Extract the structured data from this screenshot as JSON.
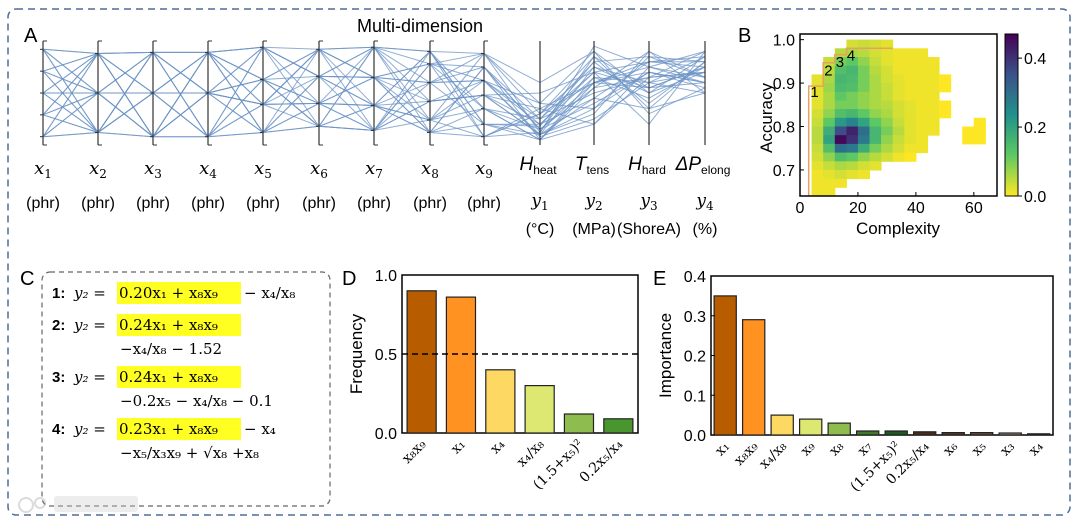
{
  "panels": {
    "a": "A",
    "b": "B",
    "c": "C",
    "d": "D",
    "e": "E"
  },
  "watermark": "大数跨境",
  "chart_data": [
    {
      "id": "A",
      "type": "parallel_coordinates",
      "title": "Multi-dimension",
      "line_color": "#6b93c6",
      "axes": [
        {
          "sym": "x",
          "sub": "1",
          "unit": "(phr)"
        },
        {
          "sym": "x",
          "sub": "2",
          "unit": "(phr)"
        },
        {
          "sym": "x",
          "sub": "3",
          "unit": "(phr)"
        },
        {
          "sym": "x",
          "sub": "4",
          "unit": "(phr)"
        },
        {
          "sym": "x",
          "sub": "5",
          "unit": "(phr)"
        },
        {
          "sym": "x",
          "sub": "6",
          "unit": "(phr)"
        },
        {
          "sym": "x",
          "sub": "7",
          "unit": "(phr)"
        },
        {
          "sym": "x",
          "sub": "8",
          "unit": "(phr)"
        },
        {
          "sym": "x",
          "sub": "9",
          "unit": "(phr)"
        },
        {
          "name": "H",
          "name_sub": "heat",
          "sym": "y",
          "sub": "1",
          "unit": "(°C)"
        },
        {
          "name": "T",
          "name_sub": "tens",
          "sym": "y",
          "sub": "2",
          "unit": "(MPa)"
        },
        {
          "name": "H",
          "name_sub": "hard",
          "sym": "y",
          "sub": "3",
          "unit": "(ShoreA)"
        },
        {
          "name": "ΔP",
          "name_sub": "elong",
          "sym": "y",
          "sub": "4",
          "unit": "(%)"
        }
      ],
      "lines_normalized": [
        [
          0.92,
          0.88,
          0.89,
          0.89,
          0.94,
          0.92,
          0.94,
          0.9,
          0.88,
          0.3,
          0.6,
          0.8,
          0.85
        ],
        [
          0.92,
          0.5,
          0.08,
          0.5,
          0.63,
          0.66,
          0.65,
          0.78,
          0.75,
          0.15,
          0.4,
          0.7,
          0.6
        ],
        [
          0.92,
          0.12,
          0.5,
          0.08,
          0.39,
          0.4,
          0.38,
          0.6,
          0.62,
          0.2,
          0.7,
          0.55,
          0.75
        ],
        [
          0.71,
          0.88,
          0.5,
          0.08,
          0.12,
          0.18,
          0.14,
          0.42,
          0.48,
          0.1,
          0.3,
          0.9,
          0.5
        ],
        [
          0.71,
          0.5,
          0.89,
          0.5,
          0.94,
          0.66,
          0.38,
          0.24,
          0.35,
          0.25,
          0.8,
          0.4,
          0.8
        ],
        [
          0.71,
          0.12,
          0.08,
          0.89,
          0.63,
          0.92,
          0.65,
          0.12,
          0.2,
          0.05,
          0.55,
          0.65,
          0.7
        ],
        [
          0.5,
          0.88,
          0.08,
          0.89,
          0.39,
          0.18,
          0.94,
          0.9,
          0.08,
          0.35,
          0.2,
          0.75,
          0.9
        ],
        [
          0.5,
          0.5,
          0.5,
          0.5,
          0.12,
          0.4,
          0.14,
          0.78,
          0.88,
          0.6,
          0.9,
          0.3,
          0.55
        ],
        [
          0.5,
          0.12,
          0.89,
          0.08,
          0.94,
          0.66,
          0.65,
          0.6,
          0.75,
          0.05,
          0.65,
          0.6,
          0.7
        ],
        [
          0.29,
          0.88,
          0.5,
          0.89,
          0.63,
          0.4,
          0.38,
          0.42,
          0.62,
          0.4,
          0.35,
          0.85,
          0.65
        ],
        [
          0.29,
          0.5,
          0.08,
          0.5,
          0.39,
          0.92,
          0.14,
          0.24,
          0.48,
          0.1,
          0.75,
          0.5,
          0.85
        ],
        [
          0.29,
          0.12,
          0.89,
          0.89,
          0.12,
          0.18,
          0.94,
          0.12,
          0.35,
          0.15,
          0.6,
          0.7,
          0.6
        ],
        [
          0.08,
          0.88,
          0.89,
          0.08,
          0.39,
          0.66,
          0.38,
          0.9,
          0.2,
          0.2,
          0.45,
          0.8,
          0.75
        ],
        [
          0.08,
          0.5,
          0.5,
          0.89,
          0.94,
          0.4,
          0.65,
          0.78,
          0.08,
          0.3,
          0.85,
          0.35,
          0.8
        ],
        [
          0.08,
          0.12,
          0.08,
          0.5,
          0.63,
          0.18,
          0.14,
          0.6,
          0.62,
          0.08,
          0.25,
          0.6,
          0.5
        ],
        [
          0.92,
          0.5,
          0.5,
          0.89,
          0.12,
          0.66,
          0.94,
          0.42,
          0.48,
          0.5,
          0.7,
          0.2,
          0.9
        ],
        [
          0.71,
          0.12,
          0.5,
          0.08,
          0.63,
          0.4,
          0.65,
          0.24,
          0.88,
          0.12,
          0.95,
          0.75,
          0.65
        ],
        [
          0.5,
          0.88,
          0.89,
          0.5,
          0.39,
          0.92,
          0.38,
          0.12,
          0.75,
          0.25,
          0.5,
          0.65,
          0.7
        ],
        [
          0.29,
          0.5,
          0.89,
          0.08,
          0.94,
          0.18,
          0.14,
          0.9,
          0.35,
          0.05,
          0.6,
          0.55,
          0.6
        ],
        [
          0.08,
          0.88,
          0.08,
          0.5,
          0.12,
          0.92,
          0.65,
          0.6,
          0.2,
          0.18,
          0.8,
          0.85,
          0.8
        ],
        [
          0.92,
          0.12,
          0.89,
          0.5,
          0.39,
          0.4,
          0.94,
          0.78,
          0.62,
          0.1,
          0.35,
          0.7,
          0.55
        ],
        [
          0.71,
          0.5,
          0.08,
          0.89,
          0.94,
          0.66,
          0.14,
          0.42,
          0.48,
          0.2,
          0.65,
          0.45,
          0.75
        ],
        [
          0.5,
          0.12,
          0.5,
          0.89,
          0.63,
          0.18,
          0.38,
          0.24,
          0.08,
          0.3,
          0.75,
          0.6,
          0.85
        ],
        [
          0.29,
          0.88,
          0.08,
          0.08,
          0.12,
          0.66,
          0.65,
          0.12,
          0.75,
          0.15,
          0.55,
          0.9,
          0.65
        ],
        [
          0.08,
          0.5,
          0.89,
          0.89,
          0.39,
          0.92,
          0.94,
          0.6,
          0.88,
          0.4,
          0.9,
          0.5,
          0.7
        ],
        [
          0.92,
          0.88,
          0.5,
          0.5,
          0.63,
          0.18,
          0.38,
          0.9,
          0.2,
          0.1,
          0.45,
          0.35,
          0.5
        ],
        [
          0.71,
          0.88,
          0.08,
          0.89,
          0.12,
          0.4,
          0.14,
          0.78,
          0.35,
          0.05,
          0.2,
          0.65,
          0.9
        ],
        [
          0.29,
          0.12,
          0.5,
          0.5,
          0.94,
          0.66,
          0.94,
          0.24,
          0.62,
          0.25,
          0.7,
          0.8,
          0.8
        ],
        [
          0.5,
          0.5,
          0.08,
          0.08,
          0.63,
          0.92,
          0.65,
          0.42,
          0.48,
          0.35,
          0.6,
          0.75,
          0.6
        ],
        [
          0.08,
          0.12,
          0.89,
          0.5,
          0.39,
          0.4,
          0.38,
          0.12,
          0.08,
          0.12,
          0.85,
          0.55,
          0.75
        ]
      ]
    },
    {
      "id": "B",
      "type": "heatmap",
      "xlabel": "Complexity",
      "ylabel": "Accuracy",
      "xlim": [
        0,
        68
      ],
      "ylim": [
        0.64,
        1.013
      ],
      "xticks": [
        "0",
        "20",
        "40",
        "60"
      ],
      "yticks": [
        "0.7",
        "0.8",
        "0.9",
        "1.0"
      ],
      "x_bin": 4,
      "y_bin": 0.02,
      "y_top": 1.0,
      "colormap": "viridis_r",
      "colorbar": {
        "range": [
          0,
          0.47
        ],
        "ticks": [
          "0.0",
          "0.2",
          "0.4"
        ]
      },
      "pareto_front": [
        [
          3,
          0.64
        ],
        [
          3,
          0.893
        ],
        [
          8,
          0.893
        ],
        [
          8,
          0.947
        ],
        [
          12,
          0.947
        ],
        [
          12,
          0.965
        ],
        [
          16,
          0.965
        ],
        [
          16,
          0.98
        ],
        [
          32,
          0.98
        ]
      ],
      "pareto_color": "#e8a060",
      "annotations": [
        {
          "text": "1",
          "x": 5,
          "y": 0.868
        },
        {
          "text": "2",
          "x": 9.8,
          "y": 0.918
        },
        {
          "text": "3",
          "x": 13.8,
          "y": 0.937
        },
        {
          "text": "4",
          "x": 17.6,
          "y": 0.952
        }
      ],
      "values": [
        [
          null,
          null,
          null,
          null,
          0.03,
          0.04,
          0.03,
          0.02,
          null,
          null,
          null,
          null,
          null,
          null,
          null,
          null,
          null
        ],
        [
          null,
          null,
          null,
          0.05,
          0.06,
          0.05,
          0.03,
          0.02,
          0.01,
          0.01,
          0.01,
          null,
          null,
          null,
          null,
          null,
          null
        ],
        [
          null,
          null,
          0.04,
          0.1,
          0.12,
          0.08,
          0.04,
          0.02,
          0.01,
          0.01,
          0.01,
          0.01,
          null,
          null,
          null,
          null,
          null
        ],
        [
          null,
          null,
          0.05,
          0.14,
          0.16,
          0.1,
          0.05,
          0.03,
          0.01,
          0.01,
          0.01,
          0.01,
          null,
          null,
          null,
          null,
          null
        ],
        [
          null,
          0.02,
          0.06,
          0.16,
          0.15,
          0.1,
          0.06,
          0.03,
          0.02,
          0.01,
          0.01,
          0.01,
          0.0,
          null,
          null,
          null,
          null
        ],
        [
          null,
          0.02,
          0.07,
          0.15,
          0.14,
          0.1,
          0.06,
          0.04,
          0.02,
          0.01,
          0.01,
          0.01,
          0.0,
          null,
          null,
          null,
          null
        ],
        [
          null,
          0.02,
          0.06,
          0.12,
          0.1,
          0.08,
          0.06,
          0.04,
          0.02,
          0.01,
          0.01,
          0.01,
          null,
          null,
          null,
          null,
          null
        ],
        [
          null,
          0.02,
          0.06,
          0.1,
          0.1,
          0.08,
          0.06,
          0.05,
          0.03,
          0.02,
          0.01,
          0.01,
          0.0,
          null,
          null,
          null,
          null
        ],
        [
          null,
          0.03,
          0.08,
          0.14,
          0.16,
          0.12,
          0.08,
          0.06,
          0.03,
          0.02,
          0.01,
          0.01,
          0.0,
          null,
          null,
          null,
          null
        ],
        [
          null,
          0.04,
          0.12,
          0.22,
          0.26,
          0.2,
          0.12,
          0.08,
          0.04,
          0.02,
          0.01,
          0.01,
          null,
          null,
          null,
          0.0,
          null
        ],
        [
          null,
          0.05,
          0.18,
          0.36,
          0.42,
          0.3,
          0.16,
          0.1,
          0.05,
          0.02,
          0.01,
          0.01,
          null,
          null,
          0.0,
          0.0,
          null
        ],
        [
          null,
          0.05,
          0.2,
          0.46,
          0.4,
          0.28,
          0.16,
          0.08,
          0.04,
          0.02,
          0.01,
          null,
          null,
          null,
          0.0,
          0.0,
          null
        ],
        [
          null,
          0.04,
          0.14,
          0.3,
          0.28,
          0.18,
          0.1,
          0.06,
          0.03,
          0.01,
          0.01,
          null,
          null,
          null,
          null,
          null,
          null
        ],
        [
          null,
          0.03,
          0.08,
          0.14,
          0.12,
          0.08,
          0.05,
          0.03,
          0.01,
          0.0,
          null,
          null,
          null,
          null,
          null,
          null,
          null
        ],
        [
          null,
          0.02,
          0.04,
          0.06,
          0.05,
          0.03,
          0.02,
          null,
          null,
          null,
          null,
          null,
          null,
          null,
          null,
          null,
          null
        ],
        [
          null,
          0.01,
          0.02,
          0.03,
          0.02,
          0.01,
          null,
          null,
          null,
          null,
          null,
          null,
          null,
          null,
          null,
          null,
          null
        ],
        [
          null,
          0.01,
          0.01,
          0.01,
          null,
          null,
          null,
          null,
          null,
          null,
          null,
          null,
          null,
          null,
          null,
          null,
          null
        ],
        [
          null,
          0.01,
          0.01,
          null,
          null,
          null,
          null,
          null,
          null,
          null,
          null,
          null,
          null,
          null,
          null,
          null,
          null
        ]
      ]
    },
    {
      "id": "D",
      "type": "bar",
      "ylabel": "Frequency",
      "ylim": [
        0,
        1.0
      ],
      "yticks": [
        "0.0",
        "0.5",
        "1.0"
      ],
      "reference_line": 0.5,
      "categories": [
        "x₈x₉",
        "x₁",
        "x₄",
        "x₄/x₈",
        "(1.5+x₅)²",
        "0.2x₅/x₄"
      ],
      "values": [
        0.9,
        0.86,
        0.4,
        0.3,
        0.12,
        0.09
      ],
      "colors": [
        "#b85c00",
        "#ff9220",
        "#fdd862",
        "#dde872",
        "#8fbc4e",
        "#4a962e"
      ]
    },
    {
      "id": "E",
      "type": "bar",
      "ylabel": "Importance",
      "ylim": [
        0,
        0.4
      ],
      "yticks": [
        "0.0",
        "0.1",
        "0.2",
        "0.3",
        "0.4"
      ],
      "categories": [
        "x₁",
        "x₈x₉",
        "x₄/x₈",
        "x₉",
        "x₈",
        "x₇",
        "(1.5+x₅)²",
        "0.2x₅/x₄",
        "x₆",
        "x₅",
        "x₃",
        "x₄"
      ],
      "values": [
        0.35,
        0.29,
        0.05,
        0.04,
        0.03,
        0.01,
        0.01,
        0.008,
        0.006,
        0.006,
        0.005,
        0.003
      ],
      "colors": [
        "#b85c00",
        "#ff9220",
        "#fdd862",
        "#dde872",
        "#8fbc4e",
        "#3f7a2c",
        "#1f5a20",
        "#4a2d1a",
        "#5c3a2a",
        "#6e4c3c",
        "#a09080",
        "#222222"
      ]
    }
  ],
  "equations": {
    "items": [
      {
        "num": "1:",
        "lhs": "y₂ =",
        "highlight": "0.20x₁ + x₈x₉",
        "rest": "− x₄/x₈",
        "line2": ""
      },
      {
        "num": "2:",
        "lhs": "y₂ =",
        "highlight": "0.24x₁ + x₈x₉",
        "rest": "",
        "line2": "−x₄/x₈ − 1.52"
      },
      {
        "num": "3:",
        "lhs": "y₂ =",
        "highlight": "0.24x₁ + x₈x₉",
        "rest": "",
        "line2": "−0.2x₅ − x₄/x₈ − 0.1"
      },
      {
        "num": "4:",
        "lhs": "y₂ =",
        "highlight": "0.23x₁ + x₈x₉",
        "rest": "− x₄",
        "line2": "−x₅/x₃x₉ + √x₈ +x₈"
      }
    ],
    "highlight_color": "#ffff22"
  }
}
